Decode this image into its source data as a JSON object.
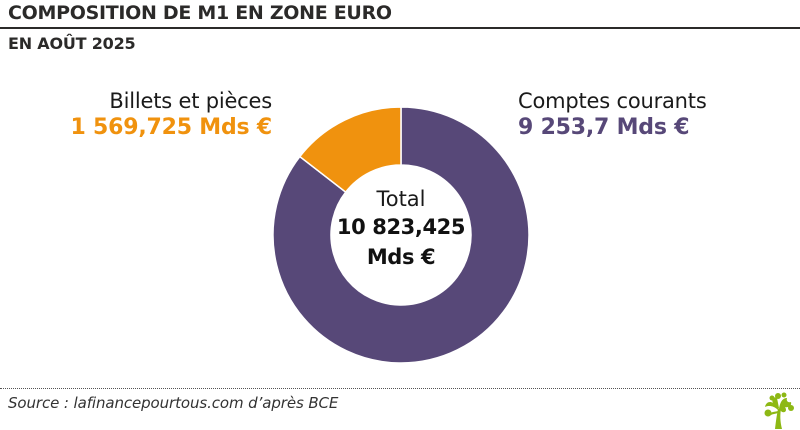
{
  "header": {
    "title": "COMPOSITION DE M1 EN ZONE EURO",
    "subtitle": "EN AOÛT 2025"
  },
  "labels": {
    "billets": {
      "name": "Billets et pièces",
      "value": "1 569,725 Mds €"
    },
    "comptes": {
      "name": "Comptes courants",
      "value": "9 253,7 Mds €"
    }
  },
  "center": {
    "label": "Total",
    "value_line1": "10 823,425",
    "value_line2": "Mds €"
  },
  "footer": {
    "source": "Source : lafinancepourtous.com d’après BCE",
    "logo": "tree-logo-icon"
  },
  "colors": {
    "billets": "#F0920E",
    "comptes": "#574878",
    "text": "#231f20",
    "logo": "#8DB814"
  },
  "chart_data": {
    "type": "pie",
    "variant": "donut",
    "title": "COMPOSITION DE M1 EN ZONE EURO",
    "subtitle": "EN AOÛT 2025",
    "categories": [
      "Comptes courants",
      "Billets et pièces"
    ],
    "values": [
      9253.7,
      1569.725
    ],
    "unit": "Mds €",
    "total": 10823.425,
    "center_label": "Total 10 823,425 Mds €",
    "colors": [
      "#574878",
      "#F0920E"
    ],
    "start_angle_deg": 0,
    "direction": "clockwise",
    "source": "Source : lafinancepourtous.com d’après BCE"
  }
}
